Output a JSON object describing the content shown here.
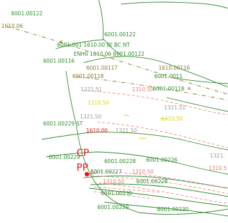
{
  "view": {
    "background": "#ffffff",
    "colors": {
      "green": "#2e8b2e",
      "olive": "#8a7a2a",
      "pink": "#e87878",
      "red": "#e01818",
      "gray": "#9a9a9a",
      "yellow": "#e0d020",
      "black": "#222222"
    }
  },
  "labels": {
    "l1": "6001.00122",
    "l2": "1610.06",
    "l3": "6001.00122",
    "l4": "6001.001 1610.00 Bt BC NT",
    "l5": "ENH0 1610.06 6001.00122",
    "l6": "6001.00116",
    "l7": "6001.00117",
    "l8": "1610.00116",
    "l9": "6001.00118",
    "l10": "6001.0011",
    "l11": "6001.00118",
    "l12": "1321.51",
    "l13": "1310.50",
    "l14": "1321.51",
    "l15": "1310.50",
    "l16": "1321.50",
    "l17": "1310.50",
    "l18": "6001.00229 ST",
    "l19": "1321.50",
    "l20": "1610.00",
    "l21": "6001.00229",
    "l22": "6001.00228",
    "l23": "6001.00226",
    "l24": "1310.5",
    "l25": "6001.00227",
    "l26": "1310.50",
    "l27": "6001.00230",
    "l28": "6001.00229",
    "l29": "6001.00230",
    "l30": "CP",
    "l31": "PP",
    "l32": "1321.",
    "l33": "6001.00228",
    "l34": "1310.50"
  }
}
